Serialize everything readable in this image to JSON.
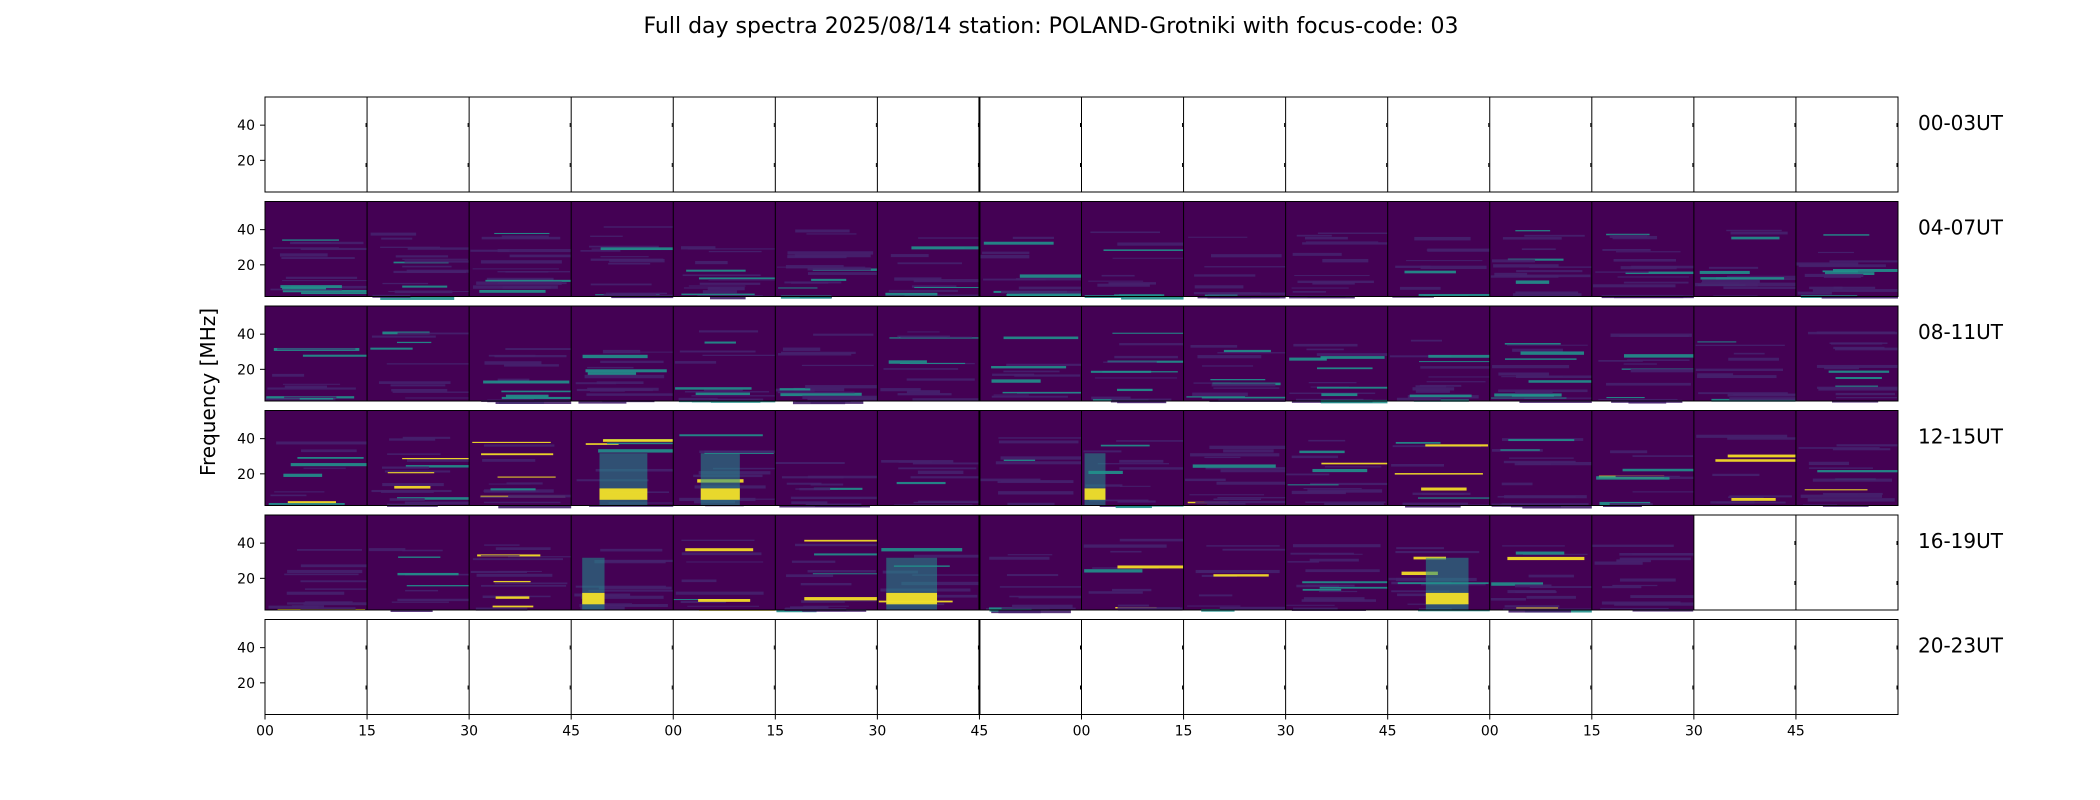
{
  "chart_data": {
    "type": "heatmap",
    "title": "Full day spectra 2025/08/14 station: POLAND-Grotniki with focus-code: 03",
    "ylabel": "Frequency [MHz]",
    "ylim": [
      2,
      56
    ],
    "y_ticks": [
      "20",
      "40"
    ],
    "y_tick_values": [
      20,
      40
    ],
    "x_tick_labels": [
      "00",
      "15",
      "30",
      "45",
      "00",
      "15",
      "30",
      "45",
      "00",
      "15",
      "30",
      "45",
      "00",
      "15",
      "30",
      "45"
    ],
    "panels_per_row": 16,
    "minutes_per_panel": 15,
    "colormap": "viridis",
    "colors": {
      "background": "#440154",
      "low": "#46216e",
      "mid": "#21918c",
      "high": "#fde725"
    },
    "rows": [
      {
        "label": "00-03UT",
        "panels_with_data": 0,
        "activity": "none"
      },
      {
        "label": "04-07UT",
        "panels_with_data": 16,
        "activity": "moderate"
      },
      {
        "label": "08-11UT",
        "panels_with_data": 16,
        "activity": "moderate"
      },
      {
        "label": "12-15UT",
        "panels_with_data": 16,
        "activity": "high"
      },
      {
        "label": "16-19UT",
        "panels_with_data": 14,
        "activity": "high"
      },
      {
        "label": "20-23UT",
        "panels_with_data": 0,
        "activity": "none"
      }
    ]
  }
}
